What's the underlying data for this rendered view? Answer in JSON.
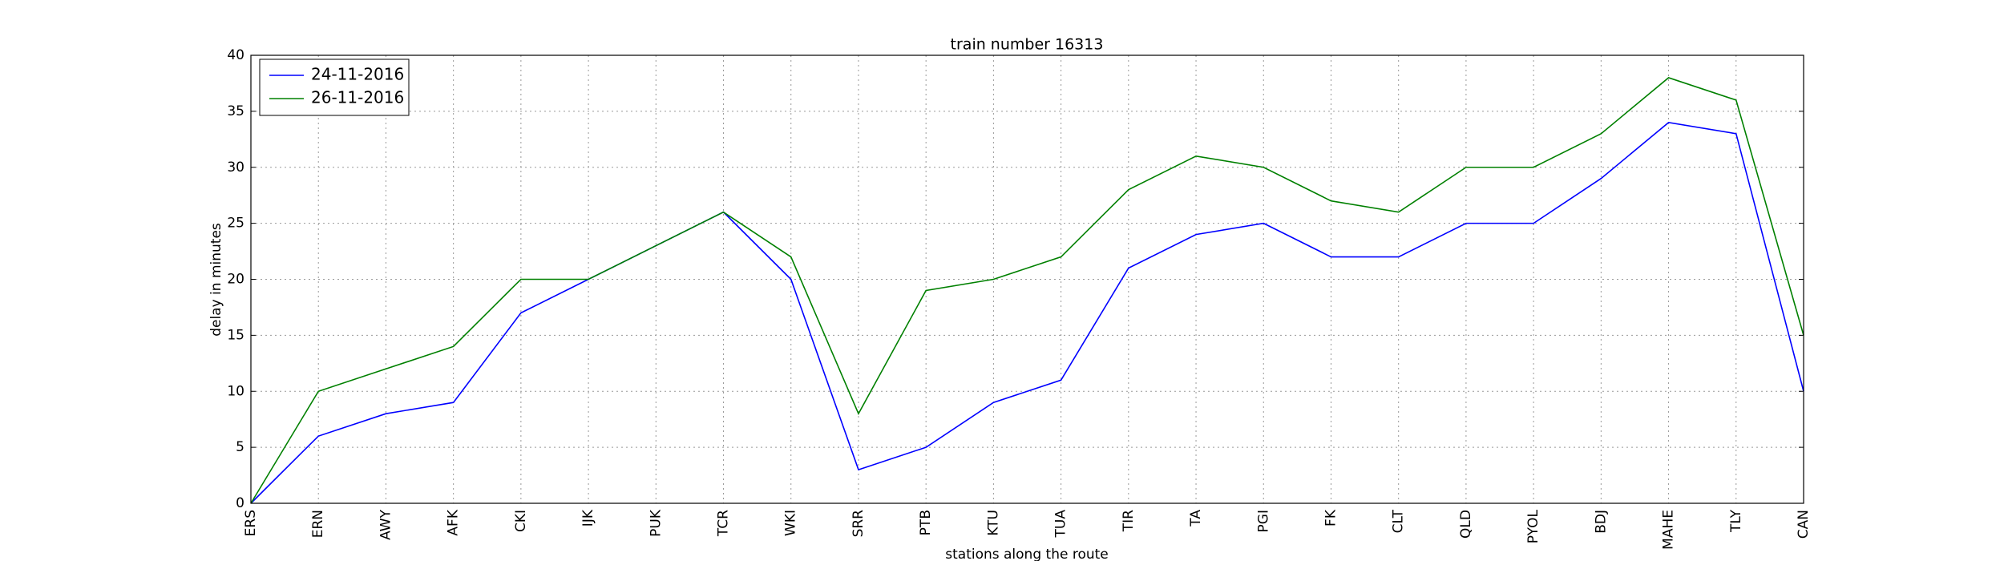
{
  "chart_data": {
    "type": "line",
    "title": "train number 16313",
    "x_label": "stations along the route",
    "y_label": "delay in minutes",
    "categories": [
      "ERS",
      "ERN",
      "AWY",
      "AFK",
      "CKI",
      "IJK",
      "PUK",
      "TCR",
      "WKI",
      "SRR",
      "PTB",
      "KTU",
      "TUA",
      "TIR",
      "TA",
      "PGI",
      "FK",
      "CLT",
      "QLD",
      "PYOL",
      "BDJ",
      "MAHE",
      "TLY",
      "CAN"
    ],
    "series": [
      {
        "name": "24-11-2016",
        "color": "#0000ff",
        "values": [
          0,
          6,
          8,
          9,
          17,
          20,
          23,
          26,
          20,
          3,
          5,
          9,
          11,
          21,
          24,
          25,
          22,
          22,
          25,
          25,
          29,
          34,
          33,
          10
        ]
      },
      {
        "name": "26-11-2016",
        "color": "#008000",
        "values": [
          0,
          10,
          12,
          14,
          20,
          20,
          23,
          26,
          22,
          8,
          19,
          20,
          22,
          28,
          31,
          30,
          27,
          26,
          30,
          30,
          33,
          38,
          36,
          15
        ]
      }
    ],
    "ylim": [
      0,
      40
    ],
    "yticks": [
      0,
      5,
      10,
      15,
      20,
      25,
      30,
      35,
      40
    ],
    "grid": true,
    "legend": "upper-left"
  }
}
